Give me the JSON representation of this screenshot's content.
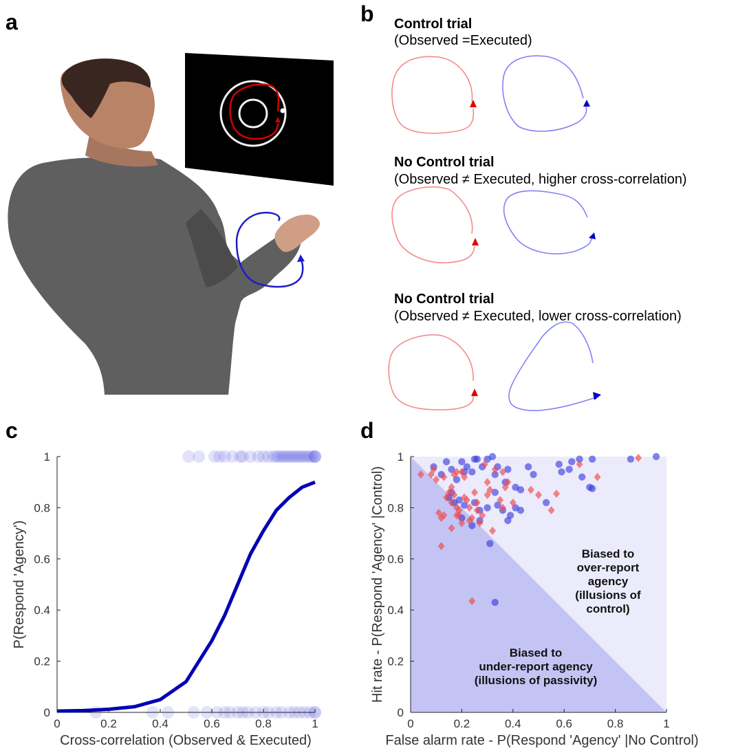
{
  "panels": {
    "a": {
      "label": "a"
    },
    "b": {
      "label": "b",
      "trials": [
        {
          "title": "Control trial",
          "subtitle": "(Observed =Executed)"
        },
        {
          "title": "No Control trial",
          "subtitle": "(Observed ≠ Executed, higher cross-correlation)"
        },
        {
          "title": "No Control trial",
          "subtitle": "(Observed ≠ Executed, lower cross-correlation)"
        }
      ],
      "colors": {
        "observed": "#f08080",
        "executed": "#7878f0",
        "observed_arrow": "#e00000",
        "executed_arrow": "#0000c8"
      }
    },
    "c": {
      "label": "c"
    },
    "d": {
      "label": "d"
    }
  },
  "chart_data": [
    {
      "type": "scatter",
      "panel": "c",
      "xlabel": "Cross-correlation (Observed & Executed)",
      "ylabel": "P(Respond 'Agency')",
      "xlim": [
        0,
        1
      ],
      "ylim": [
        0,
        1
      ],
      "xticks": [
        "0",
        "0.2",
        "0.4",
        "0.6",
        "0.8",
        "1"
      ],
      "yticks": [
        "0",
        "0.2",
        "0.4",
        "0.6",
        "0.8",
        "1"
      ],
      "grid": false,
      "fit_curve": {
        "type": "logistic",
        "color": "#0000b4",
        "x": [
          0,
          0.1,
          0.2,
          0.3,
          0.4,
          0.5,
          0.6,
          0.65,
          0.7,
          0.75,
          0.8,
          0.85,
          0.9,
          0.95,
          1.0
        ],
        "y": [
          0.005,
          0.007,
          0.012,
          0.022,
          0.05,
          0.12,
          0.28,
          0.38,
          0.5,
          0.62,
          0.71,
          0.79,
          0.84,
          0.88,
          0.9
        ]
      },
      "responses": {
        "color": "#3c3cdc",
        "respond_1": [
          0.51,
          0.55,
          0.61,
          0.63,
          0.65,
          0.68,
          0.71,
          0.72,
          0.75,
          0.78,
          0.8,
          0.82,
          0.84,
          0.85,
          0.86,
          0.87,
          0.88,
          0.89,
          0.9,
          0.91,
          0.92,
          0.93,
          0.94,
          0.95,
          0.96,
          0.97,
          0.98,
          0.99,
          1.0,
          1.0,
          1.0
        ],
        "respond_0": [
          0.15,
          0.37,
          0.43,
          0.53,
          0.58,
          0.62,
          0.65,
          0.67,
          0.7,
          0.72,
          0.74,
          0.77,
          0.8,
          0.82,
          0.85,
          0.87,
          0.9,
          0.92,
          0.94,
          0.96,
          0.98,
          1.0,
          1.0
        ]
      }
    },
    {
      "type": "scatter",
      "panel": "d",
      "xlabel": "False alarm rate - P(Respond 'Agency' |No Control)",
      "ylabel": "Hit rate - P(Respond 'Agency' |Control)",
      "xlim": [
        0,
        1
      ],
      "ylim": [
        0,
        1
      ],
      "xticks": [
        "0",
        "0.2",
        "0.4",
        "0.6",
        "0.8",
        "1"
      ],
      "yticks": [
        "0",
        "0.2",
        "0.4",
        "0.6",
        "0.8",
        "1"
      ],
      "grid": false,
      "regions": [
        {
          "text": "Biased to\nover-report\nagency\n(illusions of\ncontrol)",
          "color": "#ebebfc"
        },
        {
          "text": "Biased to\nunder-report agency\n(illusions of passivity)",
          "color": "#c4c4f4"
        }
      ],
      "series": [
        {
          "marker": "circle",
          "color": "#3232dc",
          "points": [
            [
              0.09,
              0.96
            ],
            [
              0.12,
              0.93
            ],
            [
              0.14,
              0.98
            ],
            [
              0.16,
              0.95
            ],
            [
              0.18,
              0.91
            ],
            [
              0.2,
              0.98
            ],
            [
              0.22,
              0.96
            ],
            [
              0.24,
              0.94
            ],
            [
              0.26,
              0.99
            ],
            [
              0.28,
              0.96
            ],
            [
              0.3,
              0.99
            ],
            [
              0.32,
              1.0
            ],
            [
              0.34,
              0.96
            ],
            [
              0.38,
              0.95
            ],
            [
              0.46,
              0.96
            ],
            [
              0.58,
              0.97
            ],
            [
              0.63,
              0.98
            ],
            [
              0.66,
              0.99
            ],
            [
              0.71,
              0.99
            ],
            [
              0.86,
              0.99
            ],
            [
              0.96,
              1.0
            ],
            [
              0.48,
              0.93
            ],
            [
              0.59,
              0.94
            ],
            [
              0.62,
              0.95
            ],
            [
              0.67,
              0.92
            ],
            [
              0.7,
              0.88
            ],
            [
              0.71,
              0.875
            ],
            [
              0.53,
              0.82
            ],
            [
              0.33,
              0.93
            ],
            [
              0.37,
              0.9
            ],
            [
              0.41,
              0.88
            ],
            [
              0.43,
              0.87
            ],
            [
              0.15,
              0.84
            ],
            [
              0.17,
              0.82
            ],
            [
              0.19,
              0.83
            ],
            [
              0.21,
              0.81
            ],
            [
              0.25,
              0.82
            ],
            [
              0.27,
              0.79
            ],
            [
              0.3,
              0.8
            ],
            [
              0.33,
              0.86
            ],
            [
              0.34,
              0.81
            ],
            [
              0.36,
              0.79
            ],
            [
              0.38,
              0.75
            ],
            [
              0.39,
              0.77
            ],
            [
              0.41,
              0.8
            ],
            [
              0.43,
              0.79
            ],
            [
              0.2,
              0.76
            ],
            [
              0.24,
              0.73
            ],
            [
              0.27,
              0.75
            ],
            [
              0.16,
              0.86
            ],
            [
              0.31,
              0.66
            ],
            [
              0.33,
              0.43
            ],
            [
              0.21,
              0.94
            ],
            [
              0.25,
              0.99
            ]
          ]
        },
        {
          "marker": "diamond",
          "color": "#f04848",
          "points": [
            [
              0.04,
              0.93
            ],
            [
              0.08,
              0.93
            ],
            [
              0.1,
              0.91
            ],
            [
              0.11,
              0.78
            ],
            [
              0.12,
              0.76
            ],
            [
              0.13,
              0.77
            ],
            [
              0.14,
              0.84
            ],
            [
              0.15,
              0.86
            ],
            [
              0.16,
              0.82
            ],
            [
              0.17,
              0.85
            ],
            [
              0.18,
              0.8
            ],
            [
              0.19,
              0.79
            ],
            [
              0.2,
              0.94
            ],
            [
              0.21,
              0.92
            ],
            [
              0.22,
              0.83
            ],
            [
              0.23,
              0.75
            ],
            [
              0.24,
              0.76
            ],
            [
              0.25,
              0.86
            ],
            [
              0.26,
              0.79
            ],
            [
              0.27,
              0.74
            ],
            [
              0.3,
              0.85
            ],
            [
              0.31,
              0.87
            ],
            [
              0.32,
              0.71
            ],
            [
              0.35,
              0.83
            ],
            [
              0.36,
              0.8
            ],
            [
              0.38,
              0.9
            ],
            [
              0.4,
              0.82
            ],
            [
              0.47,
              0.87
            ],
            [
              0.5,
              0.85
            ],
            [
              0.55,
              0.79
            ],
            [
              0.57,
              0.855
            ],
            [
              0.66,
              0.97
            ],
            [
              0.73,
              0.92
            ],
            [
              0.89,
              0.995
            ],
            [
              0.12,
              0.65
            ],
            [
              0.16,
              0.72
            ],
            [
              0.19,
              0.77
            ],
            [
              0.2,
              0.74
            ],
            [
              0.28,
              0.77
            ],
            [
              0.29,
              0.97
            ],
            [
              0.33,
              0.95
            ],
            [
              0.13,
              0.92
            ],
            [
              0.18,
              0.94
            ],
            [
              0.16,
              0.88
            ],
            [
              0.23,
              0.8
            ],
            [
              0.18,
              0.77
            ],
            [
              0.26,
              0.82
            ],
            [
              0.21,
              0.84
            ],
            [
              0.3,
              0.9
            ],
            [
              0.24,
              0.435
            ],
            [
              0.36,
              0.94
            ],
            [
              0.37,
              0.88
            ],
            [
              0.17,
              0.93
            ],
            [
              0.09,
              0.95
            ]
          ]
        }
      ]
    }
  ]
}
